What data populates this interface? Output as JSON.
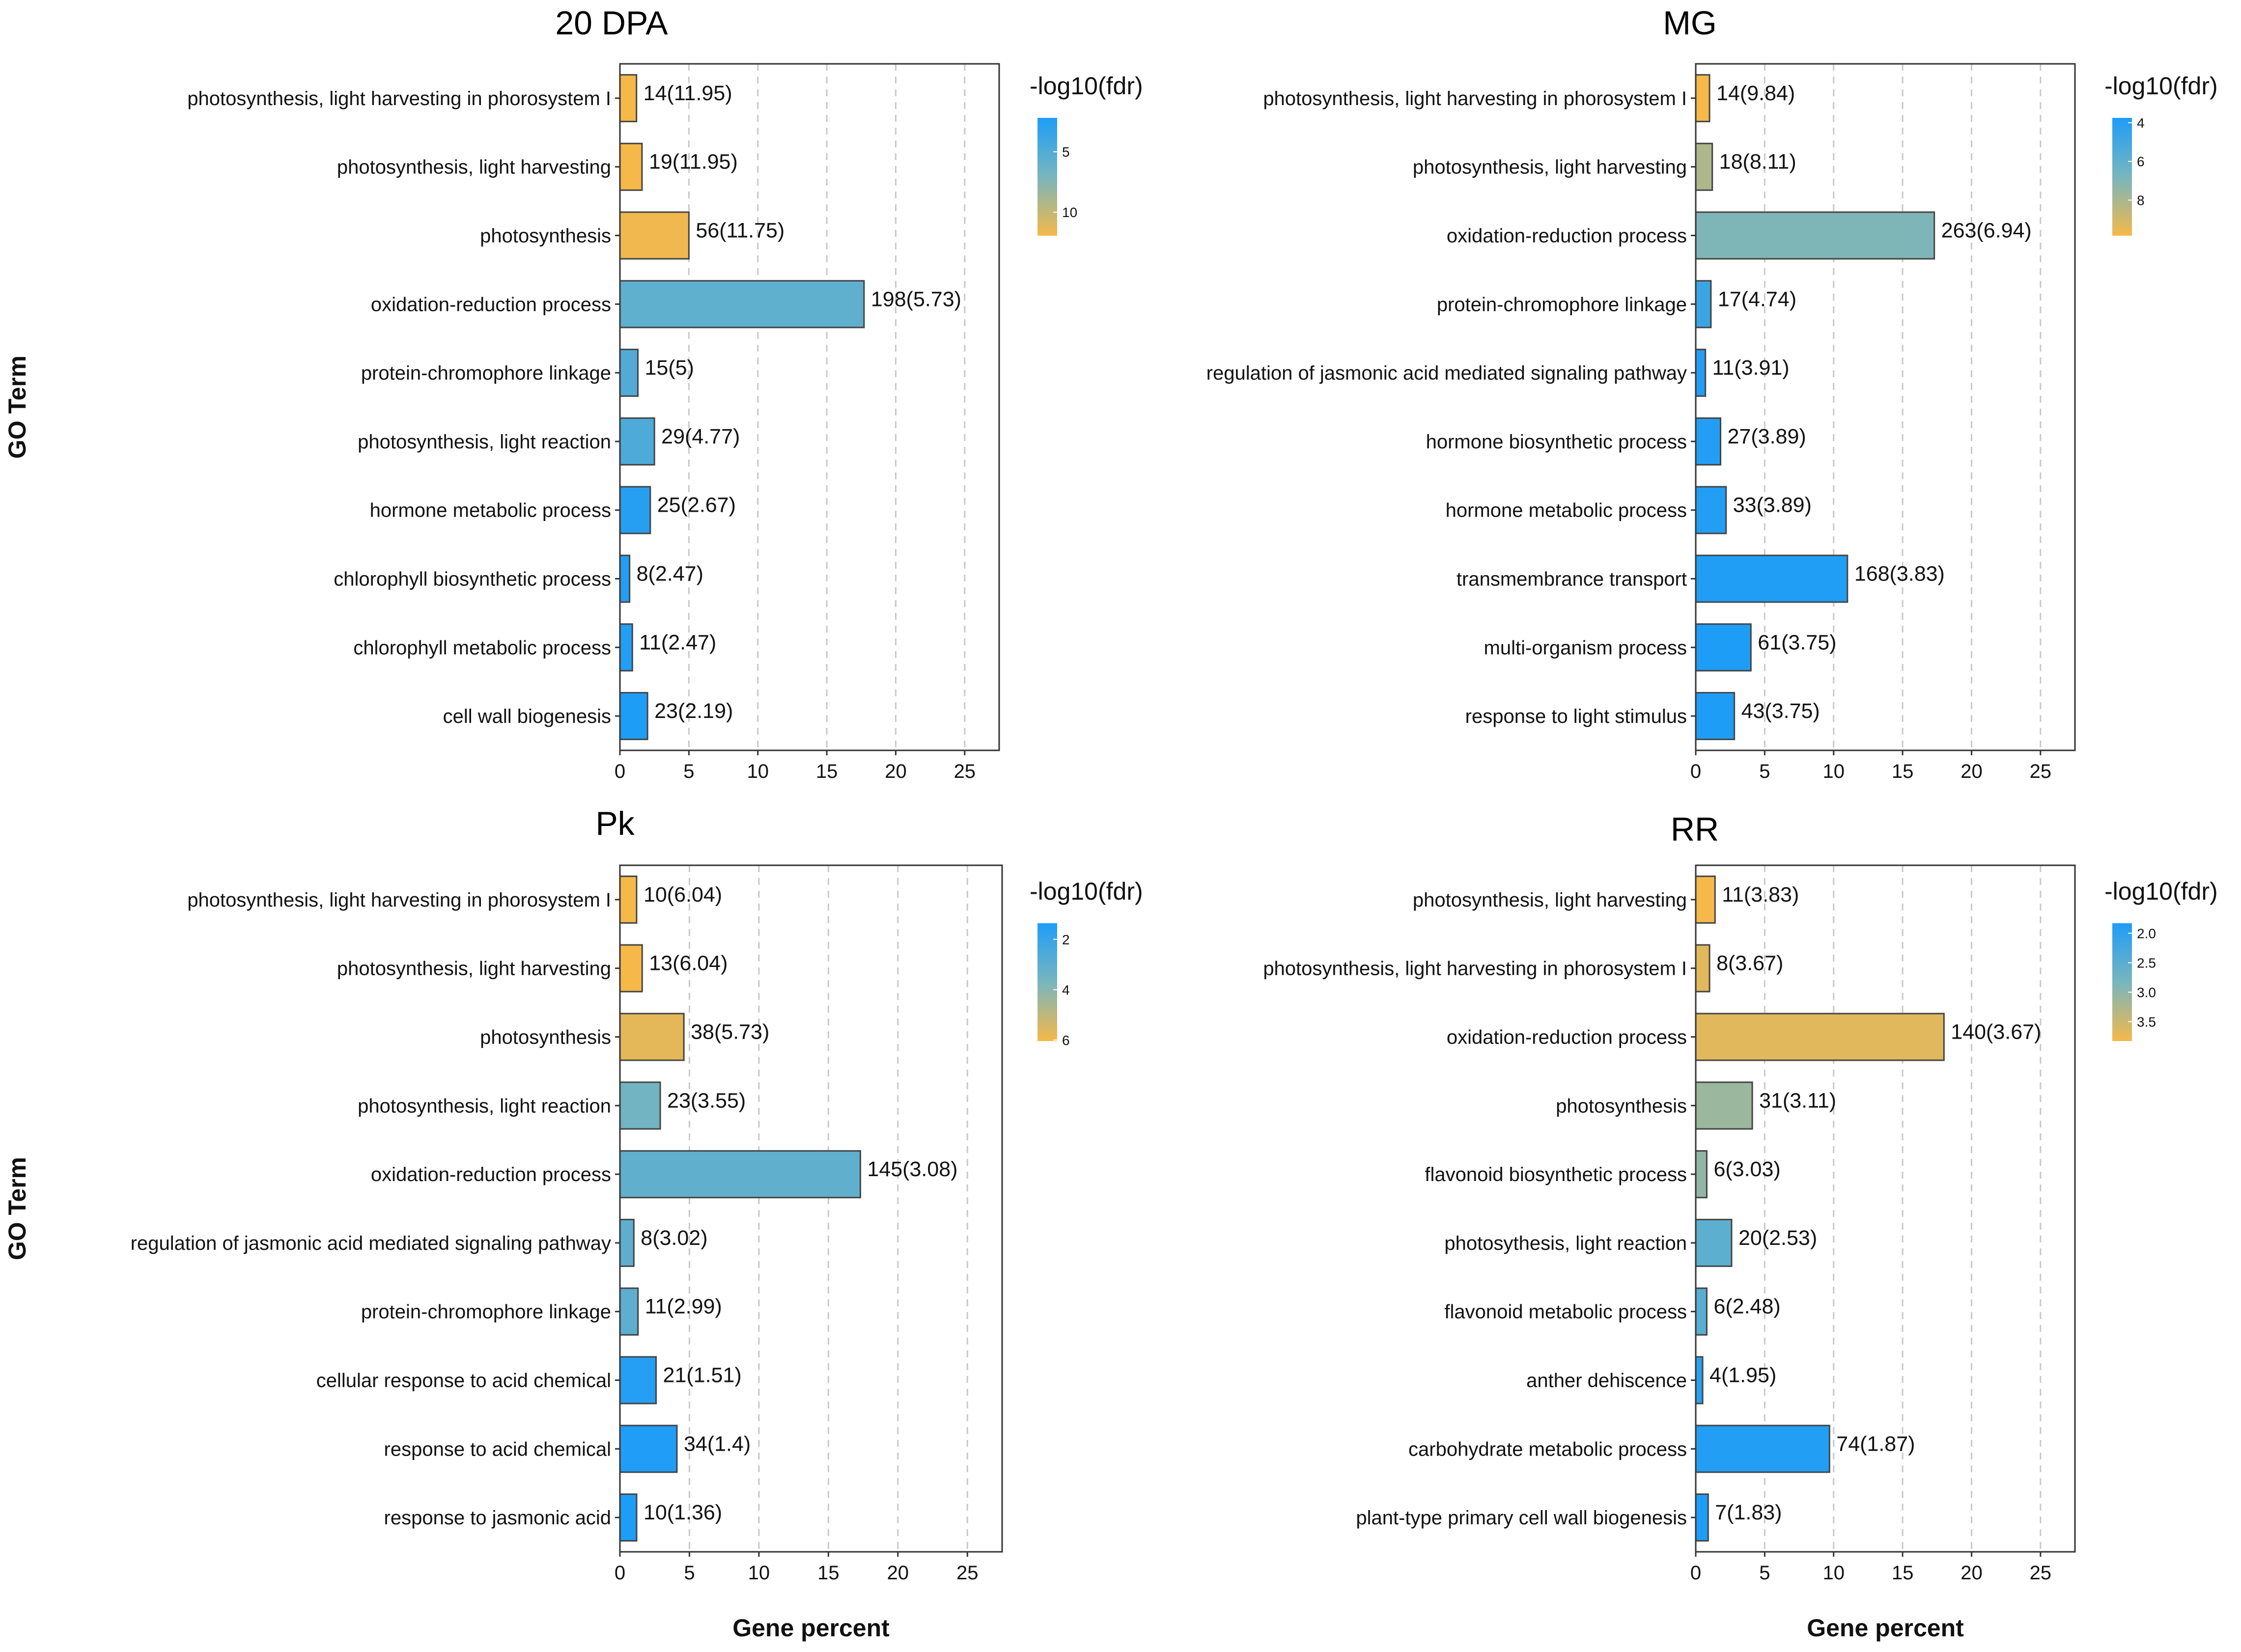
{
  "chart_data": [
    {
      "type": "bar",
      "orientation": "horizontal",
      "title": "20 DPA",
      "xlabel": "",
      "ylabel": "GO Term",
      "xlim": [
        0,
        27.5
      ],
      "xticks": [
        0,
        5,
        10,
        15,
        20,
        25
      ],
      "grid": true,
      "categories": [
        "photosynthesis, light harvesting in phorosystem I",
        "photosynthesis, light harvesting",
        "photosynthesis",
        "oxidation-reduction process",
        "protein-chromophore linkage",
        "photosynthesis, light reaction",
        "hormone metabolic process",
        "chlorophyll biosynthetic process",
        "chlorophyll metabolic process",
        "cell wall biogenesis"
      ],
      "values": [
        1.2,
        1.6,
        5.0,
        17.7,
        1.3,
        2.5,
        2.2,
        0.7,
        0.9,
        2.0
      ],
      "labels": [
        "14(11.95)",
        "19(11.95)",
        "56(11.75)",
        "198(5.73)",
        "15(5)",
        "29(4.77)",
        "25(2.67)",
        "8(2.47)",
        "11(2.47)",
        "23(2.19)"
      ],
      "color_values": [
        11.95,
        11.95,
        11.75,
        5.73,
        5,
        4.77,
        2.67,
        2.47,
        2.47,
        2.19
      ],
      "legend": {
        "title": "-log10(fdr)",
        "ticks": [
          5,
          10
        ],
        "tick_labels": [
          "5",
          "10"
        ],
        "range": [
          2.19,
          11.95
        ],
        "low_color": "#1e9df7",
        "high_color": "#f5b849"
      }
    },
    {
      "type": "bar",
      "orientation": "horizontal",
      "title": "MG",
      "xlabel": "",
      "ylabel": "",
      "xlim": [
        0,
        27.5
      ],
      "xticks": [
        0,
        5,
        10,
        15,
        20,
        25
      ],
      "grid": true,
      "categories": [
        "photosynthesis, light harvesting in phorosystem I",
        "photosynthesis, light harvesting",
        "oxidation-reduction process",
        "protein-chromophore linkage",
        "regulation of jasmonic acid mediated signaling pathway",
        "hormone biosynthetic process",
        "hormone metabolic process",
        "transmembrance transport",
        "multi-organism process",
        "response to light stimulus"
      ],
      "values": [
        1.0,
        1.2,
        17.3,
        1.1,
        0.7,
        1.8,
        2.2,
        11.0,
        4.0,
        2.8
      ],
      "labels": [
        "14(9.84)",
        "18(8.11)",
        "263(6.94)",
        "17(4.74)",
        "11(3.91)",
        "27(3.89)",
        "33(3.89)",
        "168(3.83)",
        "61(3.75)",
        "43(3.75)"
      ],
      "color_values": [
        9.84,
        8.11,
        6.94,
        4.74,
        3.91,
        3.89,
        3.89,
        3.83,
        3.75,
        3.75
      ],
      "legend": {
        "title": "-log10(fdr)",
        "ticks": [
          4,
          6,
          8
        ],
        "tick_labels": [
          "4",
          "6",
          "8"
        ],
        "range": [
          3.75,
          9.84
        ],
        "low_color": "#1e9df7",
        "high_color": "#f5b849"
      }
    },
    {
      "type": "bar",
      "orientation": "horizontal",
      "title": "Pk",
      "xlabel": "Gene percent",
      "ylabel": "GO Term",
      "xlim": [
        0,
        27.5
      ],
      "xticks": [
        0,
        5,
        10,
        15,
        20,
        25
      ],
      "grid": true,
      "categories": [
        "photosynthesis, light harvesting in phorosystem I",
        "photosynthesis, light harvesting",
        "photosynthesis",
        "photosynthesis, light reaction",
        "oxidation-reduction process",
        "regulation of jasmonic acid mediated signaling pathway",
        "protein-chromophore linkage",
        "cellular response to acid chemical",
        "response to acid chemical",
        "response to jasmonic acid"
      ],
      "values": [
        1.2,
        1.6,
        4.6,
        2.9,
        17.3,
        1.0,
        1.3,
        2.6,
        4.1,
        1.2
      ],
      "labels": [
        "10(6.04)",
        "13(6.04)",
        "38(5.73)",
        "23(3.55)",
        "145(3.08)",
        "8(3.02)",
        "11(2.99)",
        "21(1.51)",
        "34(1.4)",
        "10(1.36)"
      ],
      "color_values": [
        6.04,
        6.04,
        5.73,
        3.55,
        3.08,
        3.02,
        2.99,
        1.51,
        1.4,
        1.36
      ],
      "legend": {
        "title": "-log10(fdr)",
        "ticks": [
          2,
          4,
          6
        ],
        "tick_labels": [
          "2",
          "4",
          "6"
        ],
        "range": [
          1.36,
          6.04
        ],
        "low_color": "#1e9df7",
        "high_color": "#f5b849"
      }
    },
    {
      "type": "bar",
      "orientation": "horizontal",
      "title": "RR",
      "xlabel": "Gene percent",
      "ylabel": "",
      "xlim": [
        0,
        27.5
      ],
      "xticks": [
        0,
        5,
        10,
        15,
        20,
        25
      ],
      "grid": true,
      "categories": [
        "photosynthesis, light harvesting",
        "photosynthesis, light harvesting in phorosystem I",
        "oxidation-reduction process",
        "photosynthesis",
        "flavonoid biosynthetic process",
        "photosythesis, light reaction",
        "flavonoid metabolic process",
        "anther dehiscence",
        "carbohydrate metabolic process",
        "plant-type primary cell wall biogenesis"
      ],
      "values": [
        1.4,
        1.0,
        18.0,
        4.1,
        0.8,
        2.6,
        0.8,
        0.5,
        9.7,
        0.9
      ],
      "labels": [
        "11(3.83)",
        "8(3.67)",
        "140(3.67)",
        "31(3.11)",
        "6(3.03)",
        "20(2.53)",
        "6(2.48)",
        "4(1.95)",
        "74(1.87)",
        "7(1.83)"
      ],
      "color_values": [
        3.83,
        3.67,
        3.67,
        3.11,
        3.03,
        2.53,
        2.48,
        1.95,
        1.87,
        1.83
      ],
      "legend": {
        "title": "-log10(fdr)",
        "ticks": [
          2.0,
          2.5,
          3.0,
          3.5
        ],
        "tick_labels": [
          "2.0",
          "2.5",
          "3.0",
          "3.5"
        ],
        "range": [
          1.83,
          3.83
        ],
        "low_color": "#1e9df7",
        "high_color": "#f5b849"
      }
    }
  ]
}
